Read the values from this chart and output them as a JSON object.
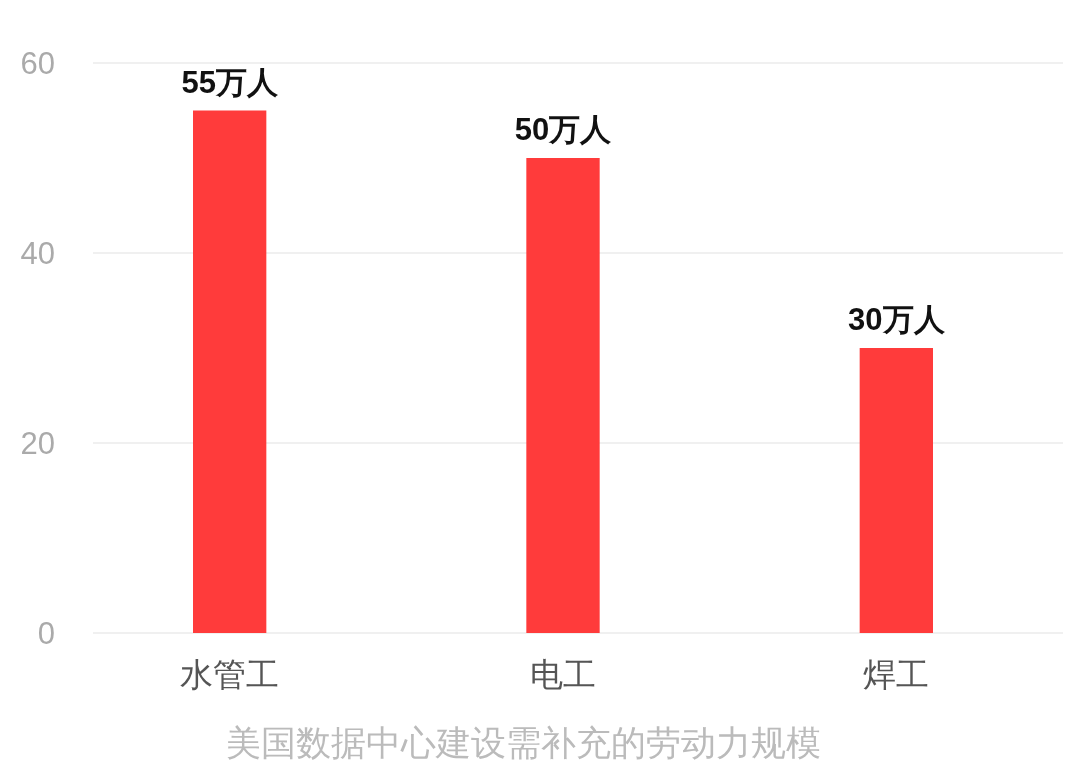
{
  "chart_data": {
    "type": "bar",
    "xlabel": "美国数据中心建设需补充的劳动力规模",
    "categories": [
      "水管工",
      "电工",
      "焊工"
    ],
    "values": [
      55,
      50,
      30
    ],
    "value_labels": [
      "55万人",
      "50万人",
      "30万人"
    ],
    "color": "#ff3b3b",
    "ylim": [
      0,
      60
    ],
    "yticks": [
      0,
      20,
      40,
      60
    ],
    "grid": "y"
  }
}
